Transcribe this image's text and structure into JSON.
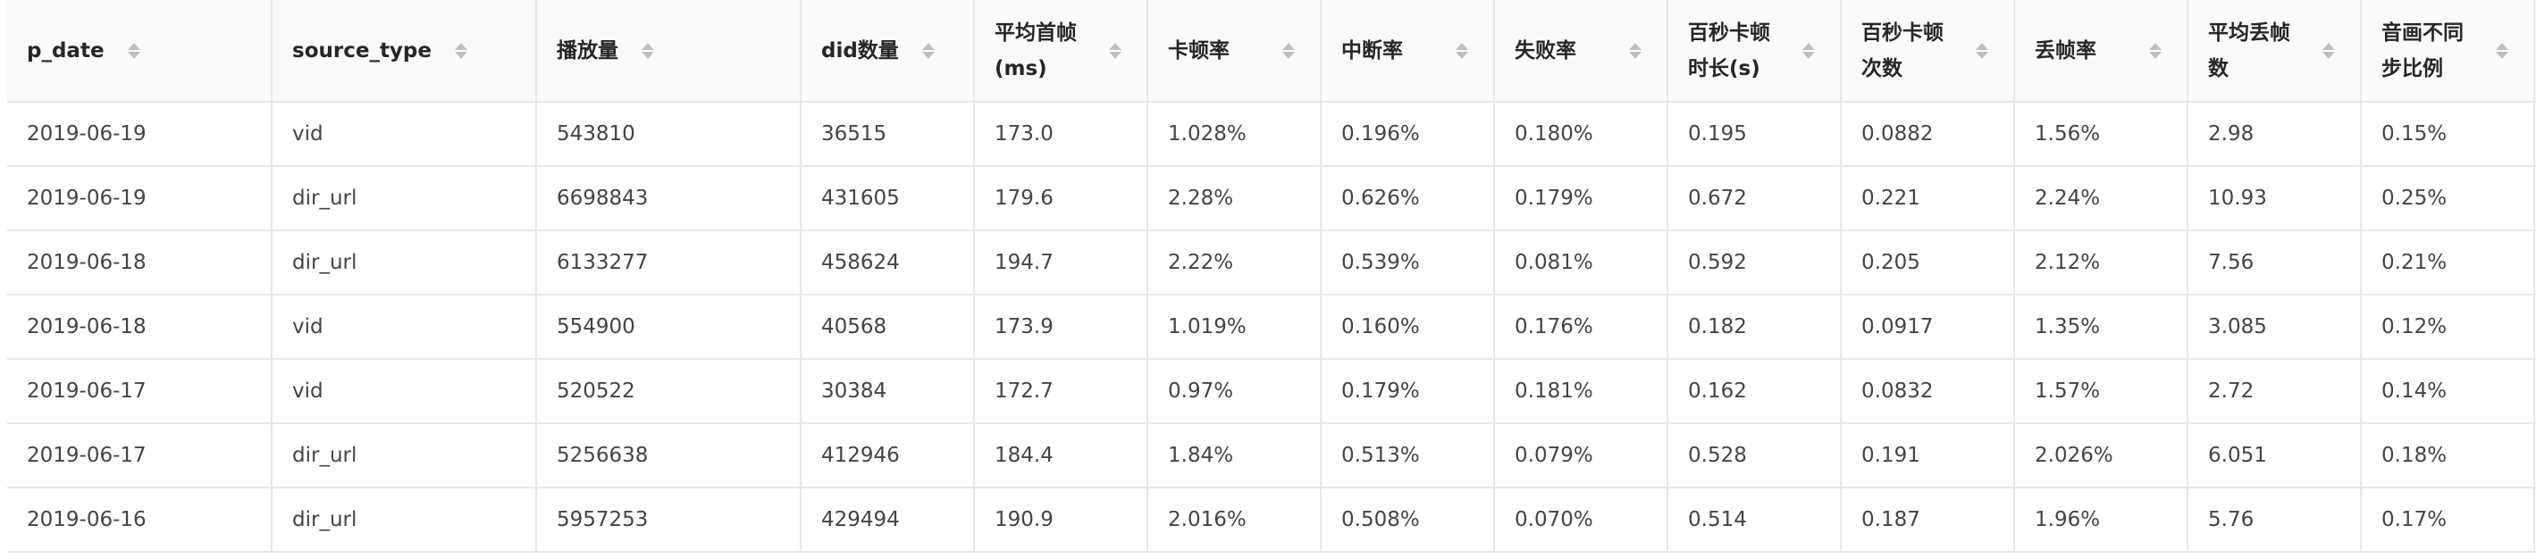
{
  "columns": [
    {
      "key": "p_date",
      "label": "p_date"
    },
    {
      "key": "source_type",
      "label": "source_type"
    },
    {
      "key": "play_count",
      "label": "播放量"
    },
    {
      "key": "did_count",
      "label": "did数量"
    },
    {
      "key": "avg_first_frame",
      "label": "平均首帧\n(ms)"
    },
    {
      "key": "stall_rate",
      "label": "卡顿率"
    },
    {
      "key": "interrupt_rate",
      "label": "中断率"
    },
    {
      "key": "fail_rate",
      "label": "失败率"
    },
    {
      "key": "stall_duration_per_100s",
      "label": "百秒卡顿\n时长(s)"
    },
    {
      "key": "stall_count_per_100s",
      "label": "百秒卡顿\n次数"
    },
    {
      "key": "frame_drop_rate",
      "label": "丢帧率"
    },
    {
      "key": "avg_frame_drop",
      "label": "平均丢帧\n数"
    },
    {
      "key": "av_desync_ratio",
      "label": "音画不同\n步比例"
    }
  ],
  "rows": [
    [
      "2019-06-19",
      "vid",
      "543810",
      "36515",
      "173.0",
      "1.028%",
      "0.196%",
      "0.180%",
      "0.195",
      "0.0882",
      "1.56%",
      "2.98",
      "0.15%"
    ],
    [
      "2019-06-19",
      "dir_url",
      "6698843",
      "431605",
      "179.6",
      "2.28%",
      "0.626%",
      "0.179%",
      "0.672",
      "0.221",
      "2.24%",
      "10.93",
      "0.25%"
    ],
    [
      "2019-06-18",
      "dir_url",
      "6133277",
      "458624",
      "194.7",
      "2.22%",
      "0.539%",
      "0.081%",
      "0.592",
      "0.205",
      "2.12%",
      "7.56",
      "0.21%"
    ],
    [
      "2019-06-18",
      "vid",
      "554900",
      "40568",
      "173.9",
      "1.019%",
      "0.160%",
      "0.176%",
      "0.182",
      "0.0917",
      "1.35%",
      "3.085",
      "0.12%"
    ],
    [
      "2019-06-17",
      "vid",
      "520522",
      "30384",
      "172.7",
      "0.97%",
      "0.179%",
      "0.181%",
      "0.162",
      "0.0832",
      "1.57%",
      "2.72",
      "0.14%"
    ],
    [
      "2019-06-17",
      "dir_url",
      "5256638",
      "412946",
      "184.4",
      "1.84%",
      "0.513%",
      "0.079%",
      "0.528",
      "0.191",
      "2.026%",
      "6.051",
      "0.18%"
    ],
    [
      "2019-06-16",
      "dir_url",
      "5957253",
      "429494",
      "190.9",
      "2.016%",
      "0.508%",
      "0.070%",
      "0.514",
      "0.187",
      "1.96%",
      "5.76",
      "0.17%"
    ]
  ],
  "icons": {
    "sort": "sort-caret-icon",
    "sort_color": "#bfbfbf"
  },
  "colors": {
    "header_bg": "#fafafa",
    "border": "#e8e8e8",
    "text": "#262626"
  }
}
